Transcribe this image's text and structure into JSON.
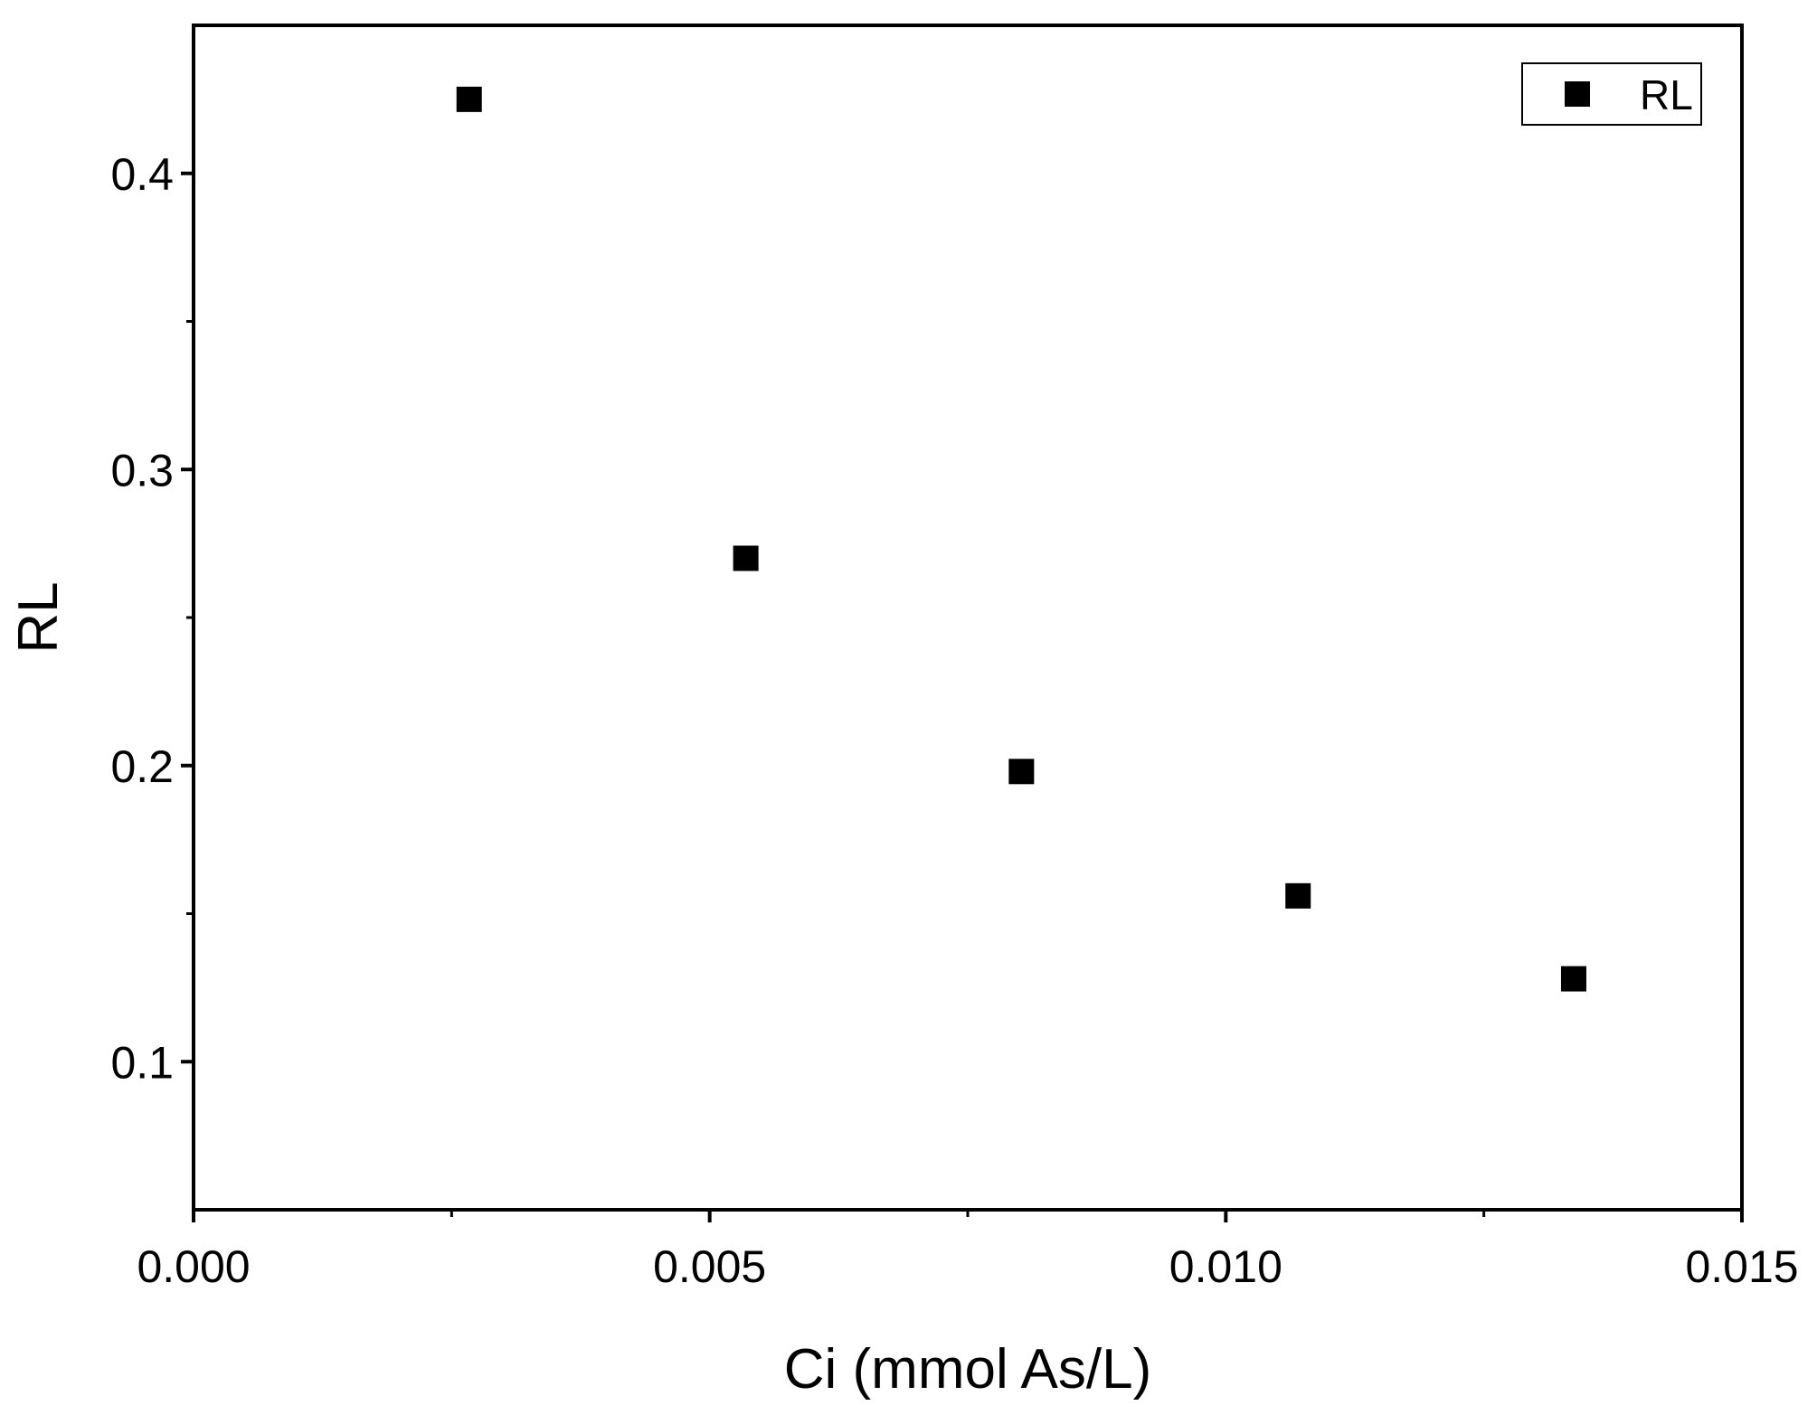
{
  "chart_data": {
    "type": "scatter",
    "title": "",
    "xlabel": "Ci (mmol As/L)",
    "ylabel": "RL",
    "xlim": [
      0.0,
      0.015
    ],
    "ylim": [
      0.05,
      0.45
    ],
    "x_ticks": [
      {
        "value": 0.0,
        "label": "0.000"
      },
      {
        "value": 0.005,
        "label": "0.005"
      },
      {
        "value": 0.01,
        "label": "0.010"
      },
      {
        "value": 0.015,
        "label": "0.015"
      }
    ],
    "x_minor_ticks": [
      0.0025,
      0.0075,
      0.0125
    ],
    "y_ticks": [
      {
        "value": 0.1,
        "label": "0.1"
      },
      {
        "value": 0.2,
        "label": "0.2"
      },
      {
        "value": 0.3,
        "label": "0.3"
      },
      {
        "value": 0.4,
        "label": "0.4"
      }
    ],
    "y_minor_ticks": [
      0.15,
      0.25,
      0.35
    ],
    "grid": false,
    "legend_position": "top-right",
    "series": [
      {
        "name": "RL",
        "marker": "square",
        "color": "#000000",
        "x": [
          0.00267,
          0.00535,
          0.00802,
          0.0107,
          0.01337
        ],
        "y": [
          0.425,
          0.27,
          0.198,
          0.156,
          0.128
        ]
      }
    ]
  }
}
